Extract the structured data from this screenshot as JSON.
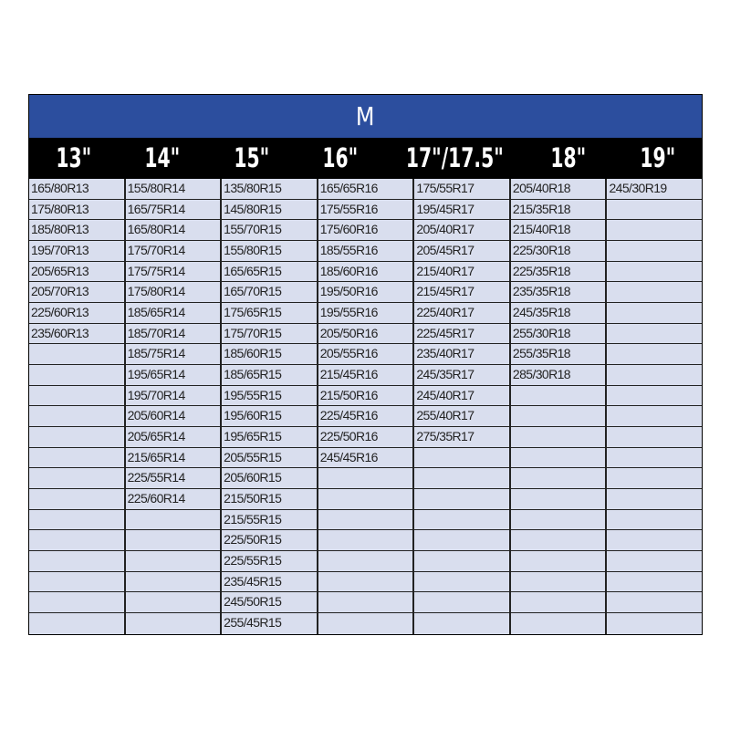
{
  "title": "M",
  "colors": {
    "title_bg": "#2C4E9E",
    "header_bg": "#000000",
    "cell_bg": "#D9DEEE"
  },
  "row_count": 22,
  "columns": [
    {
      "header": "13\"",
      "sizes": [
        "165/80R13",
        "175/80R13",
        "185/80R13",
        "195/70R13",
        "205/65R13",
        "205/70R13",
        "225/60R13",
        "235/60R13"
      ]
    },
    {
      "header": "14\"",
      "sizes": [
        "155/80R14",
        "165/75R14",
        "165/80R14",
        "175/70R14",
        "175/75R14",
        "175/80R14",
        "185/65R14",
        "185/70R14",
        "185/75R14",
        "195/65R14",
        "195/70R14",
        "205/60R14",
        "205/65R14",
        "215/65R14",
        "225/55R14",
        "225/60R14"
      ]
    },
    {
      "header": "15\"",
      "sizes": [
        "135/80R15",
        "145/80R15",
        "155/70R15",
        "155/80R15",
        "165/65R15",
        "165/70R15",
        "175/65R15",
        "175/70R15",
        "185/60R15",
        "185/65R15",
        "195/55R15",
        "195/60R15",
        "195/65R15",
        "205/55R15",
        "205/60R15",
        "215/50R15",
        "215/55R15",
        "225/50R15",
        "225/55R15",
        "235/45R15",
        "245/50R15",
        "255/45R15"
      ]
    },
    {
      "header": "16\"",
      "sizes": [
        "165/65R16",
        "175/55R16",
        "175/60R16",
        "185/55R16",
        "185/60R16",
        "195/50R16",
        "195/55R16",
        "205/50R16",
        "205/55R16",
        "215/45R16",
        "215/50R16",
        "225/45R16",
        "225/50R16",
        "245/45R16"
      ]
    },
    {
      "header": "17\"/17.5\"",
      "sizes": [
        "175/55R17",
        "195/45R17",
        "205/40R17",
        "205/45R17",
        "215/40R17",
        "215/45R17",
        "225/40R17",
        "225/45R17",
        "235/40R17",
        "245/35R17",
        "245/40R17",
        "255/40R17",
        "275/35R17"
      ]
    },
    {
      "header": "18\"",
      "sizes": [
        "205/40R18",
        "215/35R18",
        "215/40R18",
        "225/30R18",
        "225/35R18",
        "235/35R18",
        "245/35R18",
        "255/30R18",
        "255/35R18",
        "285/30R18"
      ]
    },
    {
      "header": "19\"",
      "sizes": [
        "245/30R19"
      ]
    }
  ]
}
